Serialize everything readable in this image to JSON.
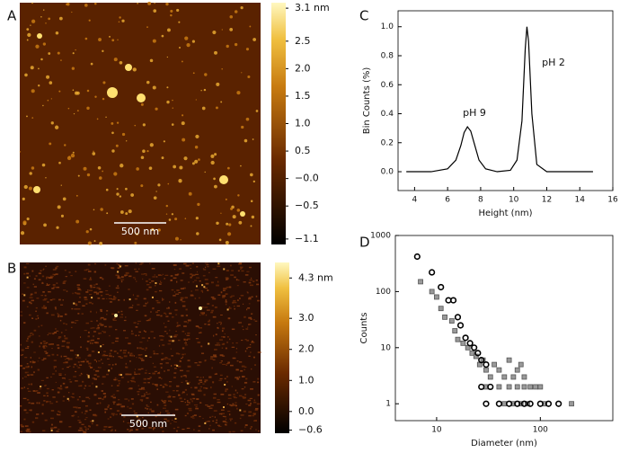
{
  "chart_data": [
    {
      "type": "image",
      "panel": "A",
      "scale_bar": "500 nm",
      "clim": [
        -1.2,
        3.2
      ],
      "colorbar_ticks": [
        {
          "value": 3.1,
          "label": "3.1 nm"
        },
        2.5,
        {
          "value": 2,
          "label": "2.0"
        },
        1.5,
        {
          "value": 1,
          "label": "1.0"
        },
        0.5,
        {
          "value": 0,
          "label": "−0.0"
        },
        {
          "value": -0.5,
          "label": "−0.5"
        },
        {
          "value": -1.1,
          "label": "−1.1"
        }
      ]
    },
    {
      "type": "image",
      "panel": "B",
      "scale_bar": "500 nm",
      "clim": [
        -0.7,
        4.8
      ],
      "colorbar_ticks": [
        {
          "value": 4.3,
          "label": "4.3 nm"
        },
        {
          "value": 3,
          "label": "3.0"
        },
        {
          "value": 2,
          "label": "2.0"
        },
        {
          "value": 1,
          "label": "1.0"
        },
        {
          "value": 0,
          "label": "0.0"
        },
        {
          "value": -0.6,
          "label": "−0.6"
        }
      ]
    },
    {
      "type": "line",
      "panel": "C",
      "x_label": "Height (nm)",
      "y_label": "Bin Counts (%)",
      "x": [
        3.5,
        5,
        6,
        6.5,
        6.8,
        7.0,
        7.2,
        7.4,
        7.6,
        7.9,
        8.3,
        9,
        9.8,
        10.2,
        10.5,
        10.7,
        10.8,
        10.9,
        11.1,
        11.4,
        12,
        13,
        14.8
      ],
      "values": [
        0,
        0,
        0.02,
        0.08,
        0.18,
        0.27,
        0.31,
        0.28,
        0.2,
        0.08,
        0.02,
        0,
        0.01,
        0.08,
        0.35,
        0.85,
        1.0,
        0.9,
        0.4,
        0.05,
        0,
        0,
        0
      ],
      "color": "#000000",
      "xlim": [
        3,
        16
      ],
      "ylim": [
        -0.13,
        1.11
      ],
      "xticks": [
        4,
        6,
        8,
        10,
        12,
        14,
        16
      ],
      "yticks": [
        {
          "value": 0,
          "label": "0.0"
        },
        0.2,
        0.4,
        0.6,
        0.8,
        {
          "value": 1,
          "label": "1.0"
        }
      ],
      "annotations": [
        "pH 9",
        "pH 2"
      ]
    },
    {
      "type": "scatter",
      "panel": "D",
      "x_label": "Diameter (nm)",
      "y_label": "Counts",
      "log_x": true,
      "log_y": true,
      "xlim": [
        4,
        500
      ],
      "ylim": [
        0.5,
        1000
      ],
      "xticks": [
        10,
        100
      ],
      "yticks": [
        1,
        10,
        100,
        1000
      ],
      "series": [
        {
          "marker": "circle",
          "color": "#000000",
          "x": [
            6.5,
            9,
            11,
            13,
            14.5,
            16,
            17,
            19,
            21,
            23,
            25,
            27,
            30,
            27,
            33,
            30,
            40,
            50,
            60,
            70,
            80,
            100,
            120,
            150
          ],
          "values": [
            420,
            220,
            120,
            70,
            70,
            35,
            25,
            15,
            12,
            10,
            8,
            6,
            5,
            2,
            2,
            1,
            1,
            1,
            1,
            1,
            1,
            1,
            1,
            1
          ]
        },
        {
          "marker": "square",
          "color": "#999999",
          "x": [
            7,
            9,
            10,
            11,
            12,
            14,
            15,
            16,
            18,
            20,
            22,
            24,
            26,
            28,
            30,
            33,
            36,
            40,
            45,
            50,
            55,
            60,
            65,
            70,
            30,
            40,
            50,
            60,
            70,
            80,
            90,
            100,
            45,
            55,
            65,
            75,
            110,
            200
          ],
          "values": [
            150,
            100,
            80,
            50,
            35,
            30,
            20,
            14,
            12,
            10,
            8,
            7,
            5,
            6,
            4,
            3,
            5,
            4,
            3,
            6,
            3,
            4,
            5,
            3,
            2,
            2,
            2,
            2,
            2,
            2,
            2,
            2,
            1,
            1,
            1,
            1,
            1,
            1
          ]
        }
      ]
    }
  ]
}
